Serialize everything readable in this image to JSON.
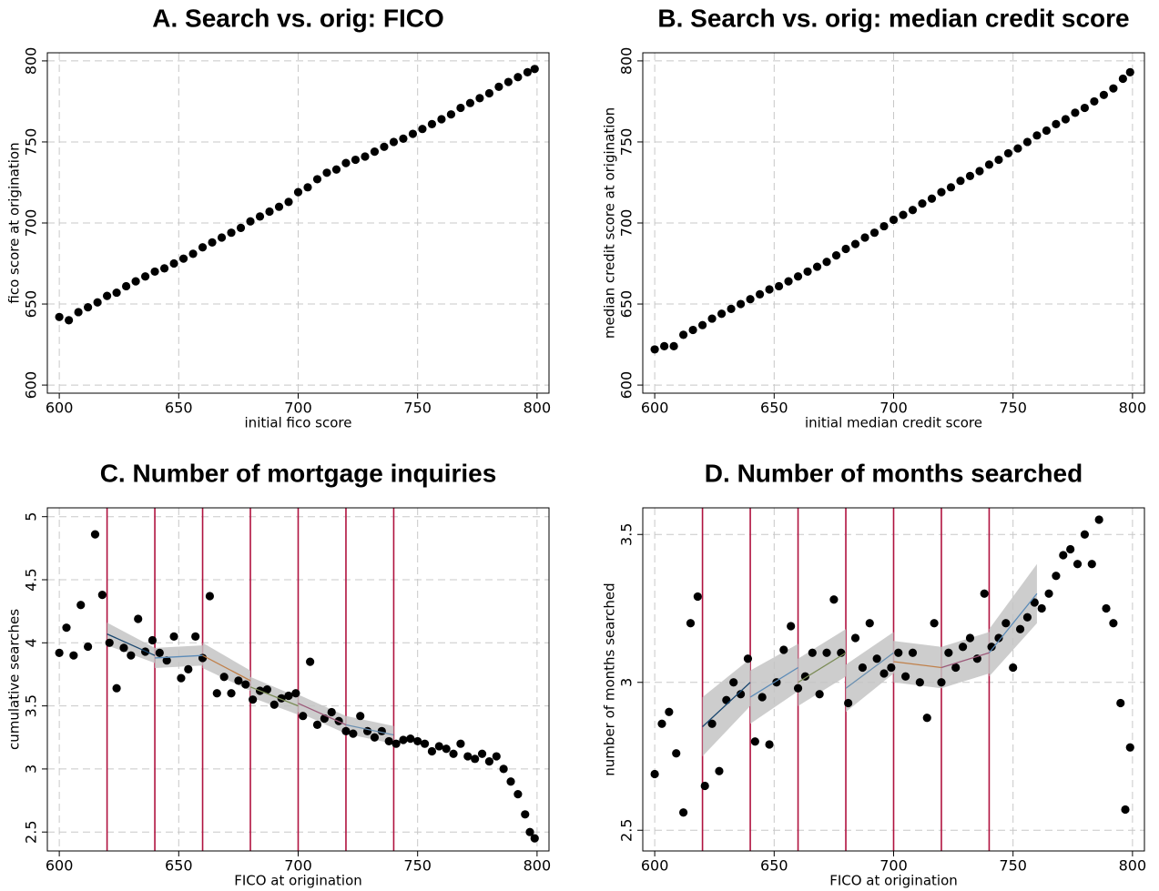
{
  "chart_data": [
    {
      "type": "scatter",
      "title": "A. Search vs. orig: FICO",
      "x_label": "initial fico score",
      "y_label": "fico score at origination",
      "x": [
        600,
        604,
        608,
        612,
        616,
        620,
        624,
        628,
        632,
        636,
        640,
        644,
        648,
        652,
        656,
        660,
        664,
        668,
        672,
        676,
        680,
        684,
        688,
        692,
        696,
        700,
        704,
        708,
        712,
        716,
        720,
        724,
        728,
        732,
        736,
        740,
        744,
        748,
        752,
        756,
        760,
        764,
        768,
        772,
        776,
        780,
        784,
        788,
        792,
        796,
        799
      ],
      "values": [
        642,
        640,
        645,
        648,
        651,
        655,
        657,
        661,
        664,
        667,
        670,
        672,
        675,
        678,
        681,
        685,
        688,
        691,
        694,
        697,
        701,
        704,
        707,
        710,
        713,
        719,
        722,
        727,
        731,
        733,
        737,
        739,
        741,
        744,
        747,
        750,
        752,
        755,
        758,
        761,
        764,
        767,
        771,
        774,
        777,
        780,
        784,
        787,
        790,
        793,
        795
      ],
      "color": "#000000",
      "xlim": [
        595,
        805
      ],
      "ylim": [
        595,
        805
      ],
      "xticks": [
        600,
        650,
        700,
        750,
        800
      ],
      "yticks": [
        600,
        650,
        700,
        750,
        800
      ],
      "grid": true
    },
    {
      "type": "scatter",
      "title": "B. Search vs. orig: median credit score",
      "x_label": "initial median credit score",
      "y_label": "median credit score at origination",
      "x": [
        600,
        604,
        608,
        612,
        616,
        620,
        624,
        628,
        632,
        636,
        640,
        644,
        648,
        652,
        656,
        660,
        664,
        668,
        672,
        676,
        680,
        684,
        688,
        692,
        696,
        700,
        704,
        708,
        712,
        716,
        720,
        724,
        728,
        732,
        736,
        740,
        744,
        748,
        752,
        756,
        760,
        764,
        768,
        772,
        776,
        780,
        784,
        788,
        792,
        796,
        799
      ],
      "values": [
        622,
        624,
        624,
        631,
        634,
        637,
        641,
        644,
        647,
        650,
        653,
        656,
        659,
        661,
        664,
        667,
        670,
        673,
        676,
        680,
        684,
        687,
        691,
        694,
        698,
        702,
        705,
        708,
        712,
        715,
        719,
        722,
        726,
        729,
        732,
        736,
        739,
        743,
        746,
        750,
        754,
        757,
        761,
        764,
        768,
        771,
        775,
        779,
        783,
        789,
        793
      ],
      "color": "#000000",
      "xlim": [
        595,
        805
      ],
      "ylim": [
        595,
        805
      ],
      "xticks": [
        600,
        650,
        700,
        750,
        800
      ],
      "yticks": [
        600,
        650,
        700,
        750,
        800
      ],
      "grid": true
    },
    {
      "type": "scatter",
      "title": "C. Number of mortgage inquiries",
      "x_label": "FICO at origination",
      "y_label": "cumulative searches",
      "x": [
        600,
        603,
        606,
        609,
        612,
        615,
        618,
        621,
        624,
        627,
        630,
        633,
        636,
        639,
        642,
        645,
        648,
        651,
        654,
        657,
        660,
        663,
        666,
        669,
        672,
        675,
        678,
        681,
        684,
        687,
        690,
        693,
        696,
        699,
        702,
        705,
        708,
        711,
        714,
        717,
        720,
        723,
        726,
        729,
        732,
        735,
        738,
        741,
        744,
        747,
        750,
        753,
        756,
        759,
        762,
        765,
        768,
        771,
        774,
        777,
        780,
        783,
        786,
        789,
        792,
        795,
        797,
        799
      ],
      "values": [
        3.92,
        4.12,
        3.9,
        4.3,
        3.97,
        4.86,
        4.38,
        4.0,
        3.64,
        3.96,
        3.9,
        4.19,
        3.93,
        4.02,
        3.92,
        3.86,
        4.05,
        3.72,
        3.79,
        4.05,
        3.88,
        4.37,
        3.6,
        3.73,
        3.6,
        3.7,
        3.67,
        3.55,
        3.62,
        3.63,
        3.51,
        3.56,
        3.58,
        3.6,
        3.42,
        3.85,
        3.35,
        3.4,
        3.45,
        3.38,
        3.3,
        3.28,
        3.42,
        3.3,
        3.25,
        3.3,
        3.22,
        3.2,
        3.23,
        3.24,
        3.22,
        3.2,
        3.14,
        3.18,
        3.16,
        3.12,
        3.2,
        3.1,
        3.08,
        3.12,
        3.06,
        3.1,
        3.0,
        2.9,
        2.8,
        2.64,
        2.5,
        2.45
      ],
      "color": "#000000",
      "xlim": [
        595,
        805
      ],
      "ylim": [
        2.35,
        5.07
      ],
      "xticks": [
        600,
        650,
        700,
        750,
        800
      ],
      "yticks": [
        2.5,
        3,
        3.5,
        4,
        4.5,
        5
      ],
      "grid": true,
      "vlines": [
        620,
        640,
        660,
        680,
        700,
        720,
        740
      ],
      "vline_color": "#b0123f",
      "band_color": "#c4c4c4",
      "fits": [
        {
          "x": [
            620,
            640
          ],
          "y": [
            4.07,
            3.9
          ],
          "lower": [
            3.98,
            3.84
          ],
          "upper": [
            4.16,
            3.96
          ],
          "color": "#1a476f"
        },
        {
          "x": [
            640,
            660
          ],
          "y": [
            3.88,
            3.9
          ],
          "lower": [
            3.8,
            3.82
          ],
          "upper": [
            3.96,
            3.98
          ],
          "color": "#5b8bb8"
        },
        {
          "x": [
            660,
            680
          ],
          "y": [
            3.9,
            3.7
          ],
          "lower": [
            3.8,
            3.62
          ],
          "upper": [
            4.0,
            3.78
          ],
          "color": "#c0804a"
        },
        {
          "x": [
            680,
            700
          ],
          "y": [
            3.65,
            3.5
          ],
          "lower": [
            3.57,
            3.43
          ],
          "upper": [
            3.73,
            3.57
          ],
          "color": "#7a8b55"
        },
        {
          "x": [
            700,
            720
          ],
          "y": [
            3.52,
            3.35
          ],
          "lower": [
            3.45,
            3.28
          ],
          "upper": [
            3.59,
            3.42
          ],
          "color": "#9c5a7a"
        },
        {
          "x": [
            720,
            740
          ],
          "y": [
            3.35,
            3.27
          ],
          "lower": [
            3.28,
            3.2
          ],
          "upper": [
            3.42,
            3.34
          ],
          "color": "#6a8fb0"
        }
      ]
    },
    {
      "type": "scatter",
      "title": "D. Number of months searched",
      "x_label": "FICO at origination",
      "y_label": "number of months searched",
      "x": [
        600,
        603,
        606,
        609,
        612,
        615,
        618,
        621,
        624,
        627,
        630,
        633,
        636,
        639,
        642,
        645,
        648,
        651,
        654,
        657,
        660,
        663,
        666,
        669,
        672,
        675,
        678,
        681,
        684,
        687,
        690,
        693,
        696,
        699,
        702,
        705,
        708,
        711,
        714,
        717,
        720,
        723,
        726,
        729,
        732,
        735,
        738,
        741,
        744,
        747,
        750,
        753,
        756,
        759,
        762,
        765,
        768,
        771,
        774,
        777,
        780,
        783,
        786,
        789,
        792,
        795,
        797,
        799
      ],
      "values": [
        2.69,
        2.86,
        2.9,
        2.76,
        2.56,
        3.2,
        3.29,
        2.65,
        2.86,
        2.7,
        2.94,
        3.0,
        2.96,
        3.08,
        2.8,
        2.95,
        2.79,
        3.0,
        3.11,
        3.19,
        2.98,
        3.02,
        3.1,
        2.96,
        3.1,
        3.28,
        3.1,
        2.93,
        3.15,
        3.05,
        3.2,
        3.08,
        3.03,
        3.05,
        3.1,
        3.02,
        3.1,
        3.0,
        2.88,
        3.2,
        3.0,
        3.1,
        3.05,
        3.12,
        3.15,
        3.08,
        3.3,
        3.12,
        3.15,
        3.2,
        3.05,
        3.18,
        3.22,
        3.27,
        3.25,
        3.3,
        3.36,
        3.43,
        3.45,
        3.4,
        3.5,
        3.4,
        3.55,
        3.25,
        3.2,
        2.93,
        2.57,
        2.78
      ],
      "color": "#000000",
      "xlim": [
        595,
        805
      ],
      "ylim": [
        2.43,
        3.59
      ],
      "xticks": [
        600,
        650,
        700,
        750,
        800
      ],
      "yticks": [
        2.5,
        3,
        3.5
      ],
      "grid": true,
      "vlines": [
        620,
        640,
        660,
        680,
        700,
        720,
        740
      ],
      "vline_color": "#b0123f",
      "band_color": "#c4c4c4",
      "fits": [
        {
          "x": [
            620,
            640
          ],
          "y": [
            2.85,
            3.0
          ],
          "lower": [
            2.75,
            2.92
          ],
          "upper": [
            2.95,
            3.08
          ],
          "color": "#1a476f"
        },
        {
          "x": [
            640,
            660
          ],
          "y": [
            2.95,
            3.05
          ],
          "lower": [
            2.86,
            2.97
          ],
          "upper": [
            3.04,
            3.13
          ],
          "color": "#5b8bb8"
        },
        {
          "x": [
            660,
            680
          ],
          "y": [
            3.0,
            3.1
          ],
          "lower": [
            2.92,
            3.02
          ],
          "upper": [
            3.08,
            3.18
          ],
          "color": "#7a8b55"
        },
        {
          "x": [
            680,
            700
          ],
          "y": [
            2.98,
            3.1
          ],
          "lower": [
            2.9,
            3.03
          ],
          "upper": [
            3.06,
            3.17
          ],
          "color": "#6a8fb0"
        },
        {
          "x": [
            700,
            720
          ],
          "y": [
            3.07,
            3.05
          ],
          "lower": [
            3.0,
            2.98
          ],
          "upper": [
            3.14,
            3.12
          ],
          "color": "#c0804a"
        },
        {
          "x": [
            720,
            740
          ],
          "y": [
            3.05,
            3.1
          ],
          "lower": [
            2.98,
            3.03
          ],
          "upper": [
            3.12,
            3.17
          ],
          "color": "#9c5a7a"
        },
        {
          "x": [
            740,
            760
          ],
          "y": [
            3.1,
            3.3
          ],
          "lower": [
            3.02,
            3.2
          ],
          "upper": [
            3.18,
            3.4
          ],
          "color": "#5b8bb8"
        }
      ]
    }
  ]
}
